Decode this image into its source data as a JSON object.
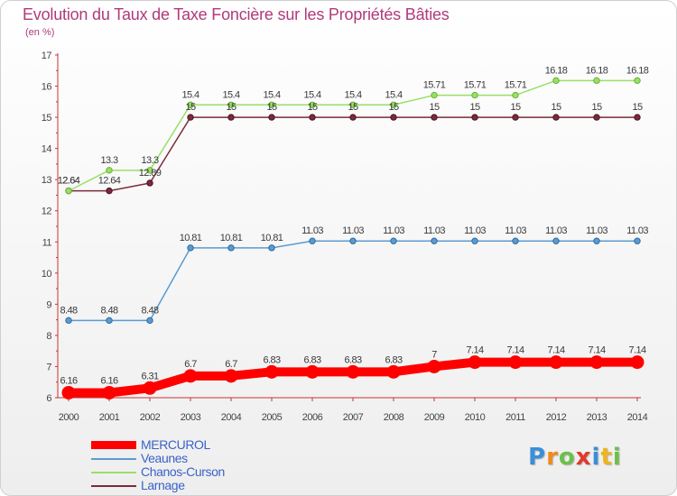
{
  "header": {
    "title": "Evolution du Taux de Taxe Foncière sur les Propriétés Bâties",
    "subtitle": "(en %)"
  },
  "chart_data": {
    "type": "line",
    "title": "Evolution du Taux de Taxe Foncière sur les Propriétés Bâties",
    "ylabel": "(en %)",
    "xlabel": "",
    "x": [
      "2000",
      "2001",
      "2002",
      "2003",
      "2004",
      "2005",
      "2006",
      "2007",
      "2008",
      "2009",
      "2010",
      "2011",
      "2012",
      "2013",
      "2014"
    ],
    "ylim": [
      6,
      17
    ],
    "yticks": [
      "6",
      "7",
      "8",
      "9",
      "10",
      "11",
      "12",
      "13",
      "14",
      "15",
      "16",
      "17"
    ],
    "series": [
      {
        "name": "MERCUROL",
        "color": "#ff0000",
        "values": [
          6.16,
          6.16,
          6.31,
          6.7,
          6.7,
          6.83,
          6.83,
          6.83,
          6.83,
          7,
          7.14,
          7.14,
          7.14,
          7.14,
          7.14
        ],
        "labels": [
          "6.16",
          "6.16",
          "6.31",
          "6.7",
          "6.7",
          "6.83",
          "6.83",
          "6.83",
          "6.83",
          "7",
          "7.14",
          "7.14",
          "7.14",
          "7.14",
          "7.14"
        ]
      },
      {
        "name": "Veaunes",
        "color": "#5b9bd0",
        "values": [
          8.48,
          8.48,
          8.48,
          10.81,
          10.81,
          10.81,
          11.03,
          11.03,
          11.03,
          11.03,
          11.03,
          11.03,
          11.03,
          11.03,
          11.03
        ],
        "labels": [
          "8.48",
          "8.48",
          "8.48",
          "10.81",
          "10.81",
          "10.81",
          "11.03",
          "11.03",
          "11.03",
          "11.03",
          "11.03",
          "11.03",
          "11.03",
          "11.03",
          "11.03"
        ]
      },
      {
        "name": "Chanos-Curson",
        "color": "#99e066",
        "values": [
          12.64,
          13.3,
          13.3,
          15.4,
          15.4,
          15.4,
          15.4,
          15.4,
          15.4,
          15.71,
          15.71,
          15.71,
          16.18,
          16.18,
          16.18
        ],
        "labels": [
          "12.64",
          "13.3",
          "13.3",
          "15.4",
          "15.4",
          "15.4",
          "15.4",
          "15.4",
          "15.4",
          "15.71",
          "15.71",
          "15.71",
          "16.18",
          "16.18",
          "16.18"
        ]
      },
      {
        "name": "Larnage",
        "color": "#7a2a3a",
        "values": [
          12.64,
          12.64,
          12.89,
          15,
          15,
          15,
          15,
          15,
          15,
          15,
          15,
          15,
          15,
          15,
          15
        ],
        "labels": [
          "12.64",
          "12.64",
          "12.89",
          "15",
          "15",
          "15",
          "15",
          "15",
          "15",
          "15",
          "15",
          "15",
          "15",
          "15",
          "15"
        ]
      }
    ],
    "grid": false,
    "legend_position": "bottom-left"
  },
  "legend": {
    "items": [
      {
        "label": "MERCUROL"
      },
      {
        "label": "Veaunes"
      },
      {
        "label": "Chanos-Curson"
      },
      {
        "label": "Larnage"
      }
    ]
  },
  "logo": {
    "letters": [
      "P",
      "r",
      "o",
      "x",
      "i",
      "t",
      "i"
    ],
    "colors": [
      "#3a8fd8",
      "#f08a1c",
      "#6cc04a",
      "#e23a2a",
      "#3a8fd8",
      "#f0b41c",
      "#6cc04a"
    ]
  }
}
